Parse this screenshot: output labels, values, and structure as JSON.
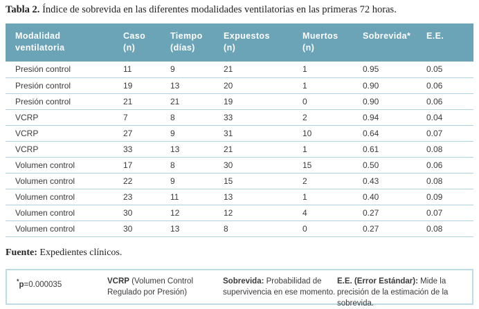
{
  "title": {
    "label": "Tabla 2.",
    "text": " Índice de sobrevida en las diferentes modalidades ventilatorias en las primeras 72 horas."
  },
  "table": {
    "headers": [
      {
        "lines": [
          "Modalidad",
          "ventilatoria"
        ]
      },
      {
        "lines": [
          "Caso",
          "(n)"
        ]
      },
      {
        "lines": [
          "Tiempo",
          "(días)"
        ]
      },
      {
        "lines": [
          "Expuestos",
          "(n)"
        ]
      },
      {
        "lines": [
          "Muertos",
          "(n)"
        ]
      },
      {
        "lines": [
          "Sobrevida*"
        ]
      },
      {
        "lines": [
          "E.E."
        ]
      }
    ],
    "rows": [
      [
        "Presión control",
        "11",
        "9",
        "21",
        "1",
        "0.95",
        "0.05"
      ],
      [
        "Presión control",
        "19",
        "13",
        "20",
        "1",
        "0.90",
        "0.06"
      ],
      [
        "Presión control",
        "21",
        "21",
        "19",
        "0",
        "0.90",
        "0.06"
      ],
      [
        "VCRP",
        "7",
        "8",
        "33",
        "2",
        "0.94",
        "0.04"
      ],
      [
        "VCRP",
        "27",
        "9",
        "31",
        "10",
        "0.64",
        "0.07"
      ],
      [
        "VCRP",
        "33",
        "13",
        "21",
        "1",
        "0.61",
        "0.08"
      ],
      [
        "Volumen control",
        "17",
        "8",
        "30",
        "15",
        "0.50",
        "0.06"
      ],
      [
        "Volumen control",
        "22",
        "9",
        "15",
        "2",
        "0.43",
        "0.08"
      ],
      [
        "Volumen control",
        "23",
        "11",
        "13",
        "1",
        "0.40",
        "0.09"
      ],
      [
        "Volumen control",
        "30",
        "12",
        "12",
        "4",
        "0.27",
        "0.07"
      ],
      [
        "Volumen control",
        "30",
        "13",
        "8",
        "0",
        "0.27",
        "0.08"
      ]
    ]
  },
  "source": {
    "label": "Fuente:",
    "text": " Expedientes clínicos."
  },
  "footnotes": [
    {
      "segments": [
        {
          "t": "*",
          "style": "sup-bold"
        },
        {
          "t": "p",
          "style": "bold"
        },
        {
          "t": "=0.000035",
          "style": "normal"
        }
      ]
    },
    {
      "segments": [
        {
          "t": "VCRP",
          "style": "bold"
        },
        {
          "t": " (Volumen Control Regulado por Presión)",
          "style": "normal"
        }
      ]
    },
    {
      "segments": [
        {
          "t": "Sobrevida:",
          "style": "bold"
        },
        {
          "t": " Probabilidad de supervivencia en ese momento.",
          "style": "normal"
        }
      ]
    },
    {
      "segments": [
        {
          "t": "E.E. (Error Estándar):",
          "style": "bold"
        },
        {
          "t": " Mide la precisión de la estimación de la sobrevida.",
          "style": "normal"
        }
      ]
    }
  ],
  "colors": {
    "header_bg": "#6ba3b7",
    "header_text": "#ffffff",
    "row_divider": "#aed2de",
    "box_border": "#bcdbe7",
    "body_text": "#3a3a3a"
  }
}
